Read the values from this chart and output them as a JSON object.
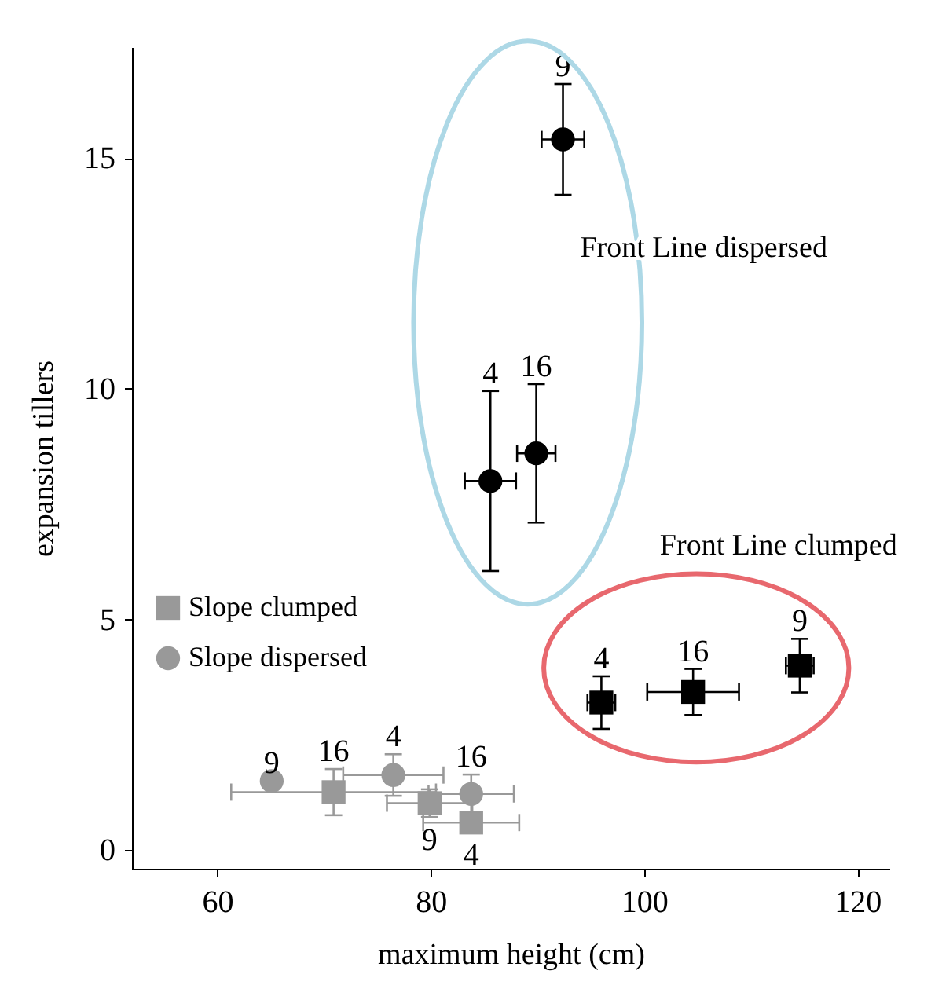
{
  "chart_data": {
    "type": "scatter",
    "xlabel": "maximum height (cm)",
    "ylabel": "expansion tillers",
    "xlim": [
      52,
      123
    ],
    "xticks": [
      60,
      80,
      100,
      120
    ],
    "ylim": [
      -0.4,
      17.4
    ],
    "yticks": [
      0,
      5,
      10,
      15
    ],
    "grid": false,
    "legend": "bottom left",
    "series": [
      {
        "name": "Slope clumped",
        "color": "#999999",
        "marker": "square",
        "x": [
          70.9,
          79.9,
          83.8
        ],
        "values": [
          1.26,
          1.02,
          0.6
        ],
        "errors": [
          0.5,
          0.3,
          0.2
        ],
        "xerrors": [
          9.6,
          4,
          4.5
        ]
      },
      {
        "name": "Slope dispersed",
        "color": "#999999",
        "marker": "circle",
        "x": [
          65.1,
          76.5,
          83.8
        ],
        "values": [
          1.5,
          1.63,
          1.22
        ],
        "errors": [
          null,
          0.45,
          0.42
        ],
        "xerrors": [
          null,
          4.7,
          4
        ]
      },
      {
        "color": "#000000",
        "marker": "circle",
        "x": [
          92.4,
          85.6,
          89.9
        ],
        "values": [
          15.4,
          8.0,
          8.6
        ],
        "errors": [
          1.2,
          1.95,
          1.5
        ],
        "xerrors": [
          2,
          2.4,
          1.8
        ]
      },
      {
        "color": "#000000",
        "marker": "square",
        "x": [
          96.0,
          104.6,
          114.6
        ],
        "values": [
          3.2,
          3.43,
          4.0
        ],
        "errors": [
          0.57,
          0.5,
          0.58
        ],
        "xerrors": [
          1.3,
          4.3,
          1.3
        ]
      }
    ],
    "annotations": [
      "Front Line dispersed",
      "Front Line clumped",
      {
        "text": "9",
        "x": 92.4,
        "y": 15.4
      },
      {
        "text": "4",
        "x": 85.6,
        "y": 8.0
      },
      {
        "text": "16",
        "x": 89.9,
        "y": 8.6
      },
      {
        "text": "4",
        "x": 96.0,
        "y": 3.2
      },
      {
        "text": "16",
        "x": 104.6,
        "y": 3.43
      },
      {
        "text": "9",
        "x": 114.6,
        "y": 4.0
      },
      {
        "text": "9",
        "x": 65.1,
        "y": 1.5
      },
      {
        "text": "16",
        "x": 70.9,
        "y": 1.26
      },
      {
        "text": "4",
        "x": 76.5,
        "y": 1.63
      },
      {
        "text": "16",
        "x": 83.8,
        "y": 1.22
      },
      {
        "text": "9",
        "x": 79.9,
        "y": 1.02
      },
      {
        "text": "4",
        "x": 83.8,
        "y": 0.6
      }
    ]
  }
}
